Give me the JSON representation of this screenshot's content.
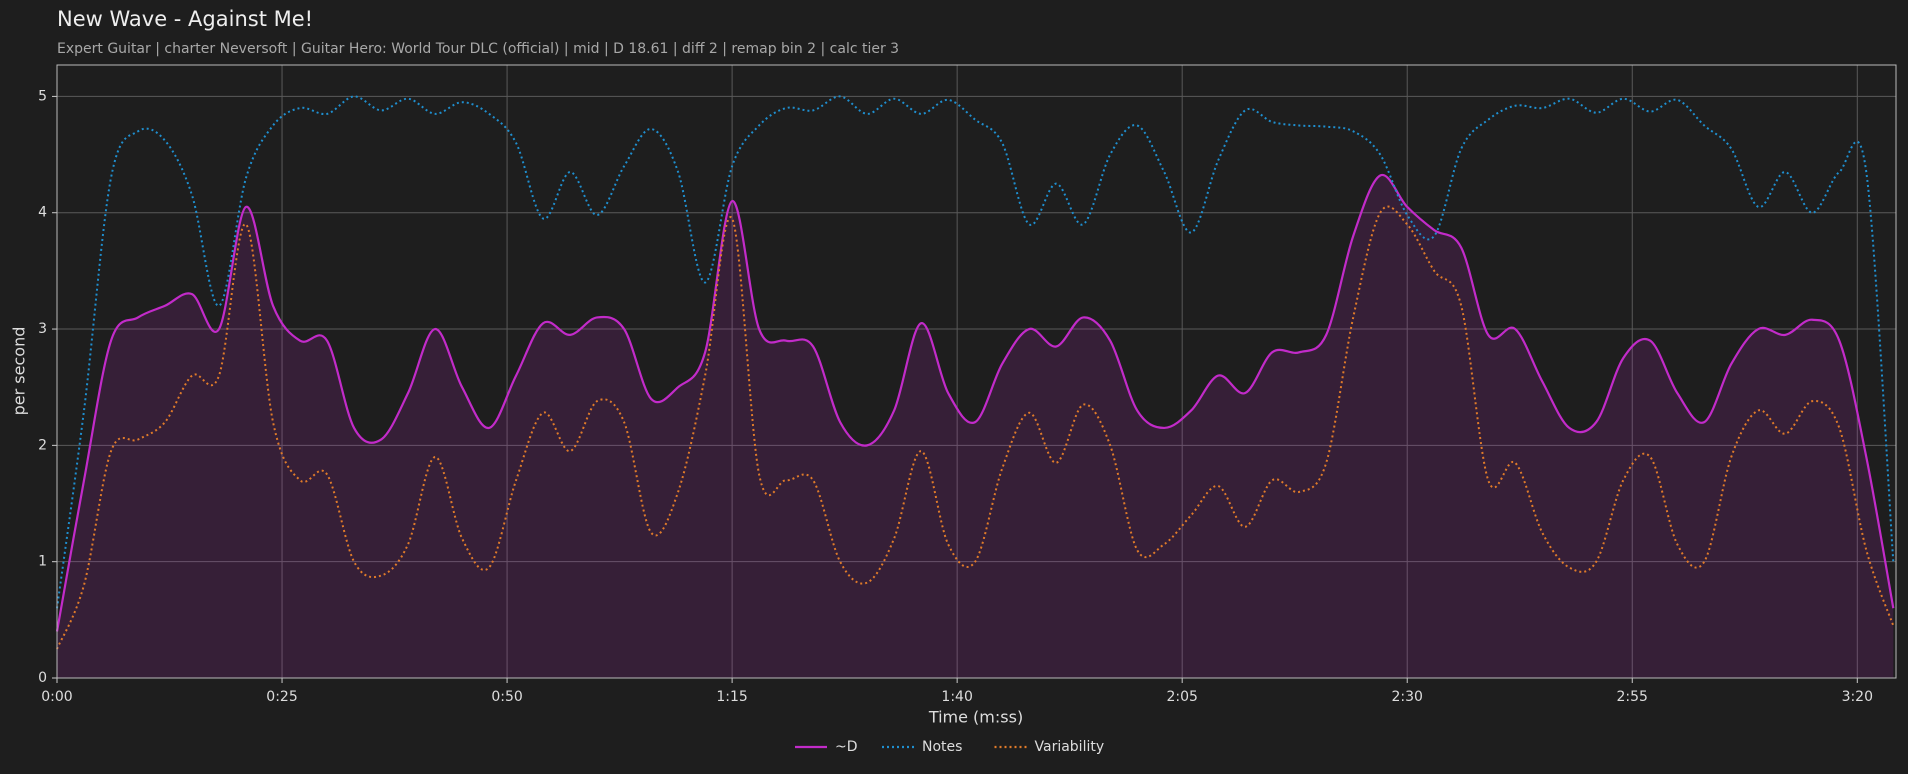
{
  "chart_data": {
    "type": "line",
    "title": "New Wave - Against Me!",
    "subtitle": "Expert Guitar  |  charter Neversoft  |  Guitar Hero: World Tour DLC (official)  |  mid  |  D 18.61  |  diff 2  |  remap bin 2  |  calc tier 3",
    "xlabel": "Time (m:ss)",
    "ylabel": "per second",
    "x": [
      0,
      3,
      6,
      9,
      12,
      15,
      18,
      21,
      24,
      27,
      30,
      33,
      36,
      39,
      42,
      45,
      48,
      51,
      54,
      57,
      60,
      63,
      66,
      69,
      72,
      75,
      78,
      81,
      84,
      87,
      90,
      93,
      96,
      99,
      102,
      105,
      108,
      111,
      114,
      117,
      120,
      123,
      126,
      129,
      132,
      135,
      138,
      141,
      144,
      147,
      150,
      153,
      156,
      159,
      162,
      165,
      168,
      171,
      174,
      177,
      180,
      183,
      186,
      189,
      192,
      195,
      198,
      201,
      204
    ],
    "series": [
      {
        "name": "~D",
        "color": "#c22bc9",
        "linestyle": "solid",
        "fill": true,
        "values": [
          0.4,
          1.7,
          2.9,
          3.1,
          3.2,
          3.3,
          3.0,
          4.05,
          3.2,
          2.9,
          2.9,
          2.15,
          2.05,
          2.45,
          3.0,
          2.5,
          2.15,
          2.6,
          3.05,
          2.95,
          3.1,
          3.0,
          2.4,
          2.5,
          2.8,
          4.1,
          3.0,
          2.9,
          2.85,
          2.2,
          2.0,
          2.3,
          3.05,
          2.45,
          2.2,
          2.7,
          3.0,
          2.85,
          3.1,
          2.9,
          2.3,
          2.15,
          2.3,
          2.6,
          2.45,
          2.8,
          2.8,
          2.95,
          3.8,
          4.32,
          4.05,
          3.85,
          3.7,
          2.95,
          3.0,
          2.55,
          2.15,
          2.2,
          2.75,
          2.9,
          2.45,
          2.2,
          2.7,
          3.0,
          2.95,
          3.08,
          2.9,
          1.9,
          0.6
        ]
      },
      {
        "name": "Notes",
        "color": "#1f8fcf",
        "linestyle": "dotted",
        "fill": false,
        "values": [
          0.6,
          2.3,
          4.3,
          4.7,
          4.62,
          4.15,
          3.2,
          4.3,
          4.75,
          4.9,
          4.85,
          5.0,
          4.88,
          4.98,
          4.85,
          4.95,
          4.85,
          4.6,
          3.95,
          4.35,
          3.98,
          4.4,
          4.72,
          4.35,
          3.4,
          4.4,
          4.75,
          4.9,
          4.88,
          5.0,
          4.85,
          4.98,
          4.85,
          4.97,
          4.8,
          4.6,
          3.9,
          4.25,
          3.9,
          4.5,
          4.75,
          4.35,
          3.83,
          4.45,
          4.88,
          4.78,
          4.75,
          4.74,
          4.7,
          4.5,
          3.98,
          3.8,
          4.55,
          4.8,
          4.92,
          4.9,
          4.98,
          4.86,
          4.98,
          4.87,
          4.97,
          4.75,
          4.55,
          4.05,
          4.35,
          4.0,
          4.35,
          4.35,
          1.0
        ]
      },
      {
        "name": "Variability",
        "color": "#e07b2a",
        "linestyle": "dotted",
        "fill": false,
        "values": [
          0.25,
          0.8,
          1.95,
          2.05,
          2.2,
          2.6,
          2.6,
          3.9,
          2.2,
          1.7,
          1.75,
          1.0,
          0.88,
          1.15,
          1.9,
          1.2,
          0.95,
          1.7,
          2.28,
          1.95,
          2.38,
          2.2,
          1.25,
          1.6,
          2.6,
          3.95,
          1.75,
          1.7,
          1.7,
          1.0,
          0.82,
          1.2,
          1.95,
          1.15,
          1.0,
          1.8,
          2.28,
          1.85,
          2.35,
          2.0,
          1.1,
          1.15,
          1.4,
          1.65,
          1.3,
          1.7,
          1.6,
          1.85,
          3.1,
          4.0,
          3.9,
          3.5,
          3.2,
          1.7,
          1.85,
          1.25,
          0.95,
          1.0,
          1.7,
          1.9,
          1.15,
          1.0,
          1.9,
          2.3,
          2.1,
          2.38,
          2.15,
          1.1,
          0.45
        ]
      }
    ],
    "xlim": [
      0,
      204.3
    ],
    "ylim": [
      0,
      5.27
    ],
    "xticks": [
      {
        "value": 0,
        "label": "0:00"
      },
      {
        "value": 25,
        "label": "0:25"
      },
      {
        "value": 50,
        "label": "0:50"
      },
      {
        "value": 75,
        "label": "1:15"
      },
      {
        "value": 100,
        "label": "1:40"
      },
      {
        "value": 125,
        "label": "2:05"
      },
      {
        "value": 150,
        "label": "2:30"
      },
      {
        "value": 175,
        "label": "2:55"
      },
      {
        "value": 200,
        "label": "3:20"
      }
    ],
    "yticks": [
      0,
      1,
      2,
      3,
      4,
      5
    ],
    "grid": true,
    "legend": "bottom"
  }
}
